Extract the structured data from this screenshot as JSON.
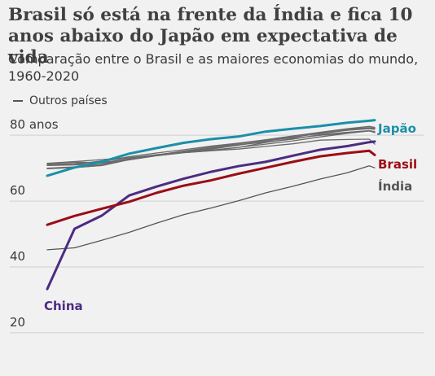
{
  "header": {
    "title": "Brasil só está na frente da Índia e fica 10 anos abaixo do Japão em expectativa de vida",
    "subtitle": "Comparação entre o Brasil e as maiores economias do mundo, 1960-2020"
  },
  "legend": {
    "others_label": "Outros países"
  },
  "chart_data": {
    "type": "line",
    "x": [
      1960,
      1965,
      1970,
      1975,
      1980,
      1985,
      1990,
      1995,
      2000,
      2005,
      2010,
      2015,
      2019,
      2020
    ],
    "ylim": [
      17,
      84
    ],
    "xlim": [
      1960,
      2020
    ],
    "y_ticks": [
      20,
      40,
      60,
      80
    ],
    "y_tick_labels": [
      "20",
      "40",
      "60",
      "80 anos"
    ],
    "grid": true,
    "title": "",
    "xlabel": "",
    "ylabel": "",
    "colors": {
      "japao": "#1b8fa8",
      "brasil": "#9b0d15",
      "china": "#4b2c82",
      "india": "#555555",
      "outros": "#6a6a6a"
    },
    "series": [
      {
        "key": "outros",
        "values": [
          71.5,
          72.0,
          72.6,
          73.2,
          74.0,
          74.8,
          75.5,
          76.3,
          77.3,
          78.3,
          79.5,
          80.6,
          81.3,
          80.8
        ]
      },
      {
        "key": "outros",
        "values": [
          70.8,
          71.0,
          71.5,
          72.5,
          73.8,
          74.7,
          75.3,
          76.3,
          77.8,
          79.0,
          80.0,
          80.7,
          81.3,
          81.0
        ]
      },
      {
        "key": "outros",
        "values": [
          70.0,
          70.4,
          71.1,
          72.7,
          74.0,
          75.1,
          75.9,
          77.0,
          78.2,
          79.5,
          80.5,
          81.5,
          82.0,
          81.8
        ]
      },
      {
        "key": "outros",
        "values": [
          71.4,
          71.8,
          71.7,
          72.8,
          74.0,
          75.0,
          76.1,
          77.1,
          77.9,
          78.8,
          80.2,
          80.9,
          81.4,
          81.1
        ]
      },
      {
        "key": "outros",
        "values": [
          69.9,
          70.2,
          70.8,
          72.6,
          74.0,
          75.2,
          76.4,
          77.4,
          78.6,
          79.4,
          80.8,
          81.8,
          82.2,
          82.0
        ]
      },
      {
        "key": "outros",
        "values": [
          69.8,
          70.2,
          70.8,
          72.6,
          73.8,
          74.7,
          75.3,
          75.8,
          76.6,
          77.4,
          78.5,
          78.7,
          78.8,
          77.3
        ]
      },
      {
        "key": "outros",
        "values": [
          71.1,
          71.4,
          72.0,
          73.5,
          74.6,
          75.6,
          76.7,
          77.6,
          78.6,
          79.8,
          80.9,
          82.0,
          82.7,
          82.4
        ]
      },
      {
        "key": "outros",
        "values": [
          71.0,
          71.1,
          72.2,
          73.1,
          74.1,
          74.8,
          75.8,
          77.0,
          78.3,
          79.3,
          80.7,
          81.8,
          82.3,
          82.1
        ]
      },
      {
        "name": "Índia",
        "key": "india",
        "values": [
          45.2,
          45.8,
          48.1,
          50.5,
          53.3,
          55.9,
          57.9,
          60.1,
          62.5,
          64.5,
          66.7,
          68.6,
          70.7,
          70.1
        ]
      },
      {
        "name": "China",
        "key": "china",
        "values": [
          33.3,
          51.6,
          55.6,
          61.7,
          64.4,
          66.8,
          68.9,
          70.6,
          71.9,
          73.8,
          75.6,
          76.7,
          77.9,
          78.1
        ]
      },
      {
        "name": "Brasil",
        "key": "brasil",
        "values": [
          52.8,
          55.5,
          57.7,
          59.8,
          62.5,
          64.7,
          66.3,
          68.3,
          70.1,
          71.9,
          73.6,
          74.6,
          75.3,
          74.0
        ]
      },
      {
        "name": "Japão",
        "key": "japao",
        "values": [
          67.7,
          70.2,
          71.9,
          74.4,
          76.1,
          77.7,
          78.8,
          79.6,
          81.1,
          82.0,
          82.8,
          83.8,
          84.4,
          84.6
        ]
      }
    ]
  }
}
